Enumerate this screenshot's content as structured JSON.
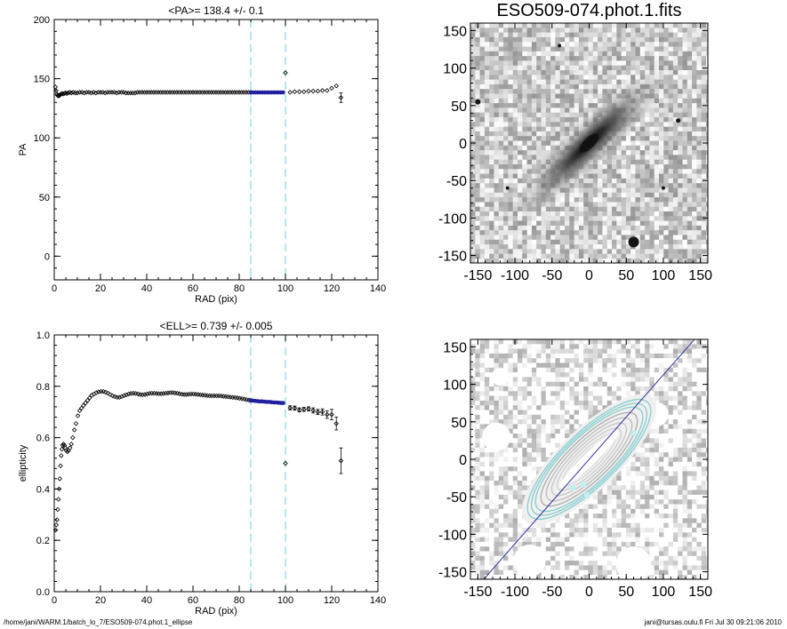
{
  "chart_data": [
    {
      "type": "scatter",
      "title": "<PA>= 138.4 +/-   0.1",
      "xlabel": "RAD (pix)",
      "ylabel": "PA",
      "xlim": [
        0,
        140
      ],
      "ylim": [
        -20,
        200
      ],
      "xticks": [
        "0",
        "20",
        "40",
        "60",
        "80",
        "100",
        "120",
        "140"
      ],
      "yticks": [
        "0",
        "50",
        "100",
        "150",
        "200"
      ],
      "vlines": [
        85,
        100
      ],
      "series": [
        {
          "style": "points",
          "x": [
            0.5,
            0.8,
            1.1,
            1.4,
            1.7,
            2.0,
            2.3,
            2.6,
            3.0,
            3.4,
            3.8,
            4.3,
            4.8,
            5.4,
            6.0,
            6.7,
            7.4,
            8.2,
            9.1,
            10.0,
            11.0,
            12.0,
            13.0,
            14.0,
            15.0,
            16.0,
            17.0,
            18.0,
            19.0,
            20.0,
            21.0,
            22.0,
            23.0,
            24.0,
            25.0,
            26.0,
            27.0,
            28.0,
            29.0,
            30.0,
            31.0,
            32.0,
            33.0,
            34.0,
            35.0,
            36.0,
            37.0,
            38.0,
            39.0,
            40.0,
            41.0,
            42.0,
            43.0,
            44.0,
            45.0,
            46.0,
            47.0,
            48.0,
            49.0,
            50.0,
            51.0,
            52.0,
            53.0,
            54.0,
            55.0,
            56.0,
            57.0,
            58.0,
            59.0,
            60.0,
            61.0,
            62.0,
            63.0,
            64.0,
            65.0,
            66.0,
            67.0,
            68.0,
            69.0,
            70.0,
            71.0,
            72.0,
            73.0,
            74.0,
            75.0,
            76.0,
            77.0,
            78.0,
            79.0,
            80.0,
            81.0,
            82.0,
            83.0,
            84.0,
            85.0
          ],
          "y": [
            143,
            140,
            137,
            136,
            135.5,
            135.5,
            136,
            136.5,
            137,
            137.5,
            137,
            137.5,
            138,
            137.5,
            138,
            138.5,
            138,
            138.5,
            138,
            138,
            138.5,
            138.5,
            138,
            138.5,
            138.5,
            138,
            138.5,
            138,
            138.5,
            138.5,
            138.5,
            138,
            138.5,
            138.5,
            138.5,
            138.5,
            138,
            138.5,
            138.5,
            138.5,
            138,
            138,
            138,
            138,
            138,
            138.5,
            138.5,
            138.5,
            138.5,
            138.5,
            138.5,
            138.5,
            138.5,
            138.5,
            138.5,
            138.5,
            138.5,
            138.5,
            138.5,
            138.5,
            138.5,
            138.5,
            138.5,
            138.5,
            138.5,
            138.5,
            138.5,
            138.5,
            138.5,
            138.5,
            138.5,
            138.5,
            138.5,
            138.5,
            138.5,
            138.5,
            138.5,
            138.5,
            138.5,
            138.5,
            138.5,
            138.5,
            138.5,
            138.5,
            138.5,
            138.5,
            138.5,
            138.5,
            138.5,
            138.5,
            138.5,
            138.5,
            138.5,
            138.5,
            138.5
          ]
        },
        {
          "style": "highlight",
          "x": [
            85,
            86,
            87,
            88,
            89,
            90,
            91,
            92,
            93,
            94,
            95,
            96,
            97,
            98,
            99
          ],
          "y": [
            138.4,
            138.4,
            138.4,
            138.4,
            138.4,
            138.4,
            138.4,
            138.4,
            138.4,
            138.4,
            138.4,
            138.4,
            138.4,
            138.4,
            138.4
          ]
        },
        {
          "style": "points",
          "x": [
            100,
            102,
            104,
            106,
            108,
            110,
            112,
            114,
            116,
            118,
            120,
            122
          ],
          "y": [
            155,
            138.5,
            139,
            139,
            139,
            139.5,
            139.5,
            139.5,
            140,
            140,
            142,
            144
          ]
        },
        {
          "style": "errorbar",
          "x": [
            124
          ],
          "y": [
            134
          ],
          "err": [
            4
          ]
        }
      ]
    },
    {
      "type": "scatter",
      "title": "<ELL>= 0.739 +/-  0.005",
      "xlabel": "RAD (pix)",
      "ylabel": "ellipticity",
      "xlim": [
        0,
        140
      ],
      "ylim": [
        0.0,
        1.0
      ],
      "xticks": [
        "0",
        "20",
        "40",
        "60",
        "80",
        "100",
        "120",
        "140"
      ],
      "yticks": [
        "0.0",
        "0.2",
        "0.4",
        "0.6",
        "0.8",
        "1.0"
      ],
      "vlines": [
        85,
        100
      ],
      "series": [
        {
          "style": "points",
          "x": [
            0.6,
            0.9,
            1.2,
            1.5,
            1.8,
            2.1,
            2.4,
            2.7,
            3.0,
            3.3,
            3.6,
            4.0,
            4.4,
            4.8,
            5.2,
            5.7,
            6.2,
            6.8,
            7.4,
            8.0,
            8.7,
            9.4,
            10.2,
            11.0,
            11.8,
            12.6,
            13.5,
            14.4,
            15.3,
            16.2,
            17.2,
            18.2,
            19.2,
            20.2,
            21.2,
            22.2,
            23.2,
            24.2,
            25.2,
            26.2,
            27.2,
            28.2,
            29.2,
            30.2,
            31.2,
            32.2,
            33.2,
            34.2,
            35.2,
            36.2,
            37.2,
            38.2,
            39.2,
            40.2,
            41.2,
            42.2,
            43.2,
            44.2,
            45.2,
            46.2,
            47.2,
            48.2,
            49.2,
            50.2,
            51.2,
            52.2,
            53.2,
            54.2,
            55.2,
            56.2,
            57.2,
            58.2,
            59.2,
            60.2,
            61.2,
            62.2,
            63.2,
            64.2,
            65.2,
            66.2,
            67.2,
            68.2,
            69.2,
            70.2,
            71.2,
            72.2,
            73.2,
            74.2,
            75.2,
            76.2,
            77.2,
            78.2,
            79.2,
            80.2,
            81.2,
            82.2,
            83.2,
            84.2,
            85.0
          ],
          "y": [
            0.24,
            0.26,
            0.28,
            0.32,
            0.36,
            0.4,
            0.44,
            0.49,
            0.53,
            0.555,
            0.57,
            0.575,
            0.57,
            0.56,
            0.55,
            0.545,
            0.55,
            0.56,
            0.575,
            0.6,
            0.63,
            0.655,
            0.685,
            0.705,
            0.715,
            0.725,
            0.735,
            0.745,
            0.755,
            0.765,
            0.77,
            0.775,
            0.778,
            0.78,
            0.78,
            0.777,
            0.773,
            0.768,
            0.763,
            0.76,
            0.757,
            0.757,
            0.76,
            0.764,
            0.767,
            0.77,
            0.772,
            0.773,
            0.772,
            0.77,
            0.768,
            0.767,
            0.768,
            0.77,
            0.772,
            0.773,
            0.773,
            0.772,
            0.771,
            0.771,
            0.772,
            0.773,
            0.774,
            0.775,
            0.775,
            0.774,
            0.773,
            0.771,
            0.769,
            0.768,
            0.768,
            0.769,
            0.77,
            0.77,
            0.769,
            0.768,
            0.767,
            0.766,
            0.765,
            0.764,
            0.763,
            0.763,
            0.763,
            0.763,
            0.763,
            0.762,
            0.761,
            0.76,
            0.759,
            0.758,
            0.757,
            0.756,
            0.755,
            0.753,
            0.752,
            0.75,
            0.748,
            0.746,
            0.745
          ]
        },
        {
          "style": "highlight",
          "x": [
            85,
            86,
            87,
            88,
            89,
            90,
            91,
            92,
            93,
            94,
            95,
            96,
            97,
            98,
            99
          ],
          "y": [
            0.745,
            0.744,
            0.743,
            0.742,
            0.741,
            0.741,
            0.74,
            0.739,
            0.739,
            0.738,
            0.737,
            0.737,
            0.736,
            0.735,
            0.735
          ]
        },
        {
          "style": "points",
          "x": [
            100
          ],
          "y": [
            0.5
          ]
        },
        {
          "style": "errorbar",
          "x": [
            102,
            104,
            106,
            108,
            110,
            112,
            114,
            116,
            118,
            120,
            122,
            124
          ],
          "y": [
            0.716,
            0.715,
            0.708,
            0.71,
            0.712,
            0.706,
            0.7,
            0.7,
            0.69,
            0.69,
            0.655,
            0.51
          ],
          "err": [
            0.008,
            0.008,
            0.008,
            0.008,
            0.008,
            0.01,
            0.01,
            0.012,
            0.015,
            0.02,
            0.025,
            0.05
          ]
        }
      ]
    },
    {
      "type": "heatmap",
      "title": "ESO509-074.phot.1.fits",
      "xlim": [
        -160,
        160
      ],
      "ylim": [
        -160,
        160
      ],
      "xticks": [
        "-150",
        "-100",
        "-50",
        "0",
        "50",
        "100",
        "150"
      ],
      "yticks": [
        "-150",
        "-100",
        "-50",
        "0",
        "50",
        "100",
        "150"
      ]
    },
    {
      "type": "heatmap",
      "title": "",
      "xlim": [
        -160,
        160
      ],
      "ylim": [
        -160,
        160
      ],
      "xticks": [
        "-150",
        "-100",
        "-50",
        "0",
        "50",
        "100",
        "150"
      ],
      "yticks": [
        "-150",
        "-100",
        "-50",
        "0",
        "50",
        "100",
        "150"
      ],
      "major_axis_line": {
        "angle_deg": 48.4
      }
    }
  ],
  "footer": {
    "left": "/home/jani/WARM.1/batch_lo_7/ESO509-074.phot.1_ellipse",
    "right": "jani@tursas.oulu.fi  Fri Jul 30 09:21:06 2010"
  },
  "colors": {
    "axis": "#000000",
    "vline": "#7fd8e8",
    "highlight": "#2020a0",
    "contour_outer": "#8fcfcf",
    "contour_inner": "#e0e0e0",
    "major_line": "#3030a0"
  }
}
